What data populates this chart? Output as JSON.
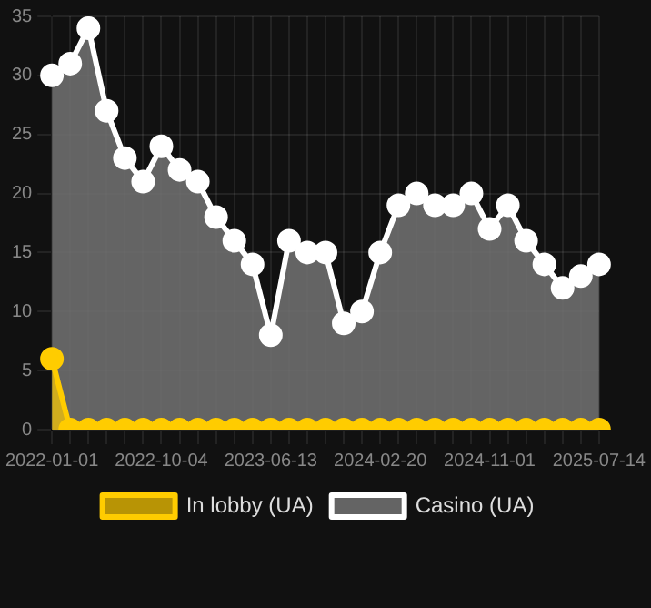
{
  "chart_data": {
    "type": "area",
    "categories": [
      "2022-01-01",
      null,
      null,
      null,
      null,
      null,
      "2022-10-04",
      null,
      null,
      null,
      null,
      null,
      "2023-06-13",
      null,
      null,
      null,
      null,
      null,
      "2024-02-20",
      null,
      null,
      null,
      null,
      null,
      "2024-11-01",
      null,
      null,
      null,
      null,
      null,
      "2025-07-14"
    ],
    "series": [
      {
        "name": "In lobby (UA)",
        "color": "#ffcc00",
        "values": [
          6,
          0,
          0,
          0,
          0,
          0,
          0,
          0,
          0,
          0,
          0,
          0,
          0,
          0,
          0,
          0,
          0,
          0,
          0,
          0,
          0,
          0,
          0,
          0,
          0,
          0,
          0,
          0,
          0,
          0,
          0
        ]
      },
      {
        "name": "Casino (UA)",
        "color": "#ffffff",
        "values": [
          30,
          31,
          34,
          27,
          23,
          21,
          24,
          22,
          21,
          18,
          16,
          14,
          8,
          16,
          15,
          15,
          9,
          10,
          15,
          19,
          20,
          19,
          19,
          20,
          17,
          19,
          16,
          14,
          12,
          13,
          14
        ]
      }
    ],
    "ylim": [
      0,
      35
    ],
    "yticks": [
      0,
      5,
      10,
      15,
      20,
      25,
      30,
      35
    ],
    "grid": true,
    "legend": "bottom",
    "marker": "circle"
  }
}
